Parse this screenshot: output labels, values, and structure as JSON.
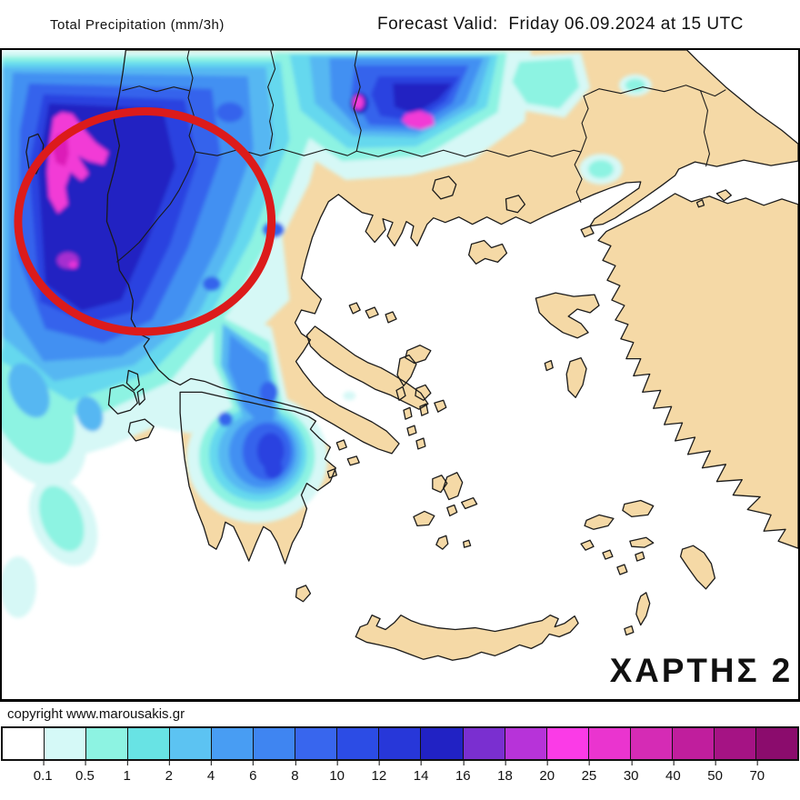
{
  "header": {
    "title": "Total Precipitation (mm/3h)",
    "forecast_valid": "Forecast Valid:  Friday 06.09.2024 at 15 UTC"
  },
  "map": {
    "label": "ΧΑΡΤΗΣ 2",
    "annotation": "red-ellipse-highlight-northwest-greece"
  },
  "footer": {
    "copyright": "copyright www.marousakis.gr"
  },
  "legend": {
    "unit": "mm/3h",
    "values": [
      "0.1",
      "0.5",
      "1",
      "2",
      "4",
      "6",
      "8",
      "10",
      "12",
      "14",
      "16",
      "18",
      "20",
      "25",
      "30",
      "40",
      "50",
      "70"
    ],
    "colors": [
      "#ffffff",
      "#d5f9f7",
      "#8df3e2",
      "#68e3e4",
      "#5cc3f2",
      "#489df3",
      "#3f85f1",
      "#3866ee",
      "#2c4ce5",
      "#2737d9",
      "#2122c4",
      "#7a2fd0",
      "#b733d9",
      "#fb3be7",
      "#ea34cf",
      "#d52bb5",
      "#c01e9d",
      "#a51384",
      "#8b0c6d"
    ]
  },
  "colors": {
    "sea": "#ffffff",
    "land": "#f5d9a6",
    "coast": "#1a1a1a",
    "border_line": "#1a1a1a",
    "annotation_circle": "#dc1b1b",
    "map_label_text": "#111111"
  },
  "palette": {
    "pale": "#d6f8f6",
    "cyan": "#8df3e2",
    "teal": "#65d8ee",
    "light_blue": "#57b7f2",
    "mid_blue": "#4390f2",
    "blue": "#3564ec",
    "deep_blue": "#2b43e0",
    "navy": "#2021c2",
    "magenta": "#f23ad6",
    "magenta_deep": "#dc1ab8",
    "purple": "#a62fd0",
    "pink": "#e832d8"
  }
}
